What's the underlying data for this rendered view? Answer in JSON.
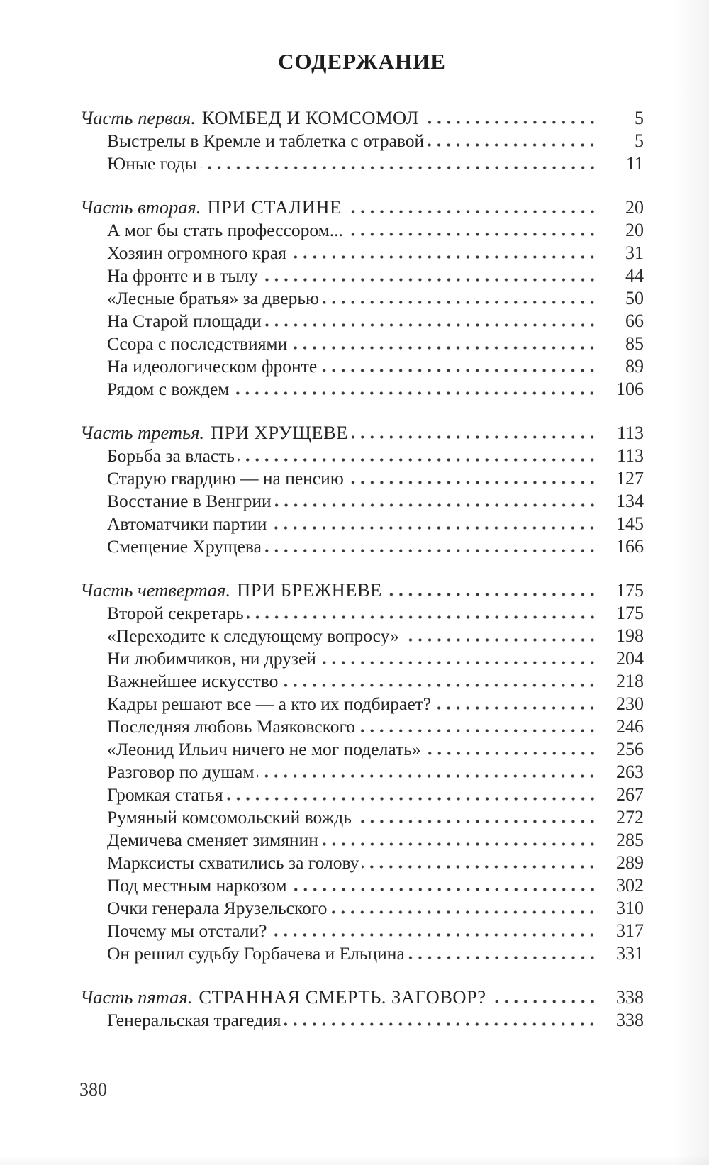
{
  "page": {
    "title": "СОДЕРЖАНИЕ",
    "folio": "380"
  },
  "colors": {
    "text": "#222222",
    "paper": "#ffffff"
  },
  "toc": {
    "sections": [
      {
        "part_label": "Часть первая.",
        "part_title": "КОМБЕД И КОМСОМОЛ",
        "page": "5",
        "items": [
          {
            "title": "Выстрелы в Кремле и таблетка с отравой",
            "page": "5"
          },
          {
            "title": "Юные годы",
            "page": "11"
          }
        ]
      },
      {
        "part_label": "Часть вторая.",
        "part_title": "ПРИ СТАЛИНЕ",
        "page": "20",
        "items": [
          {
            "title": "А мог бы стать профессором...",
            "page": "20"
          },
          {
            "title": "Хозяин огромного края",
            "page": "31"
          },
          {
            "title": "На фронте и в тылу",
            "page": "44"
          },
          {
            "title": "«Лесные братья» за дверью",
            "page": "50"
          },
          {
            "title": "На Старой площади",
            "page": "66"
          },
          {
            "title": "Ссора с последствиями",
            "page": "85"
          },
          {
            "title": "На идеологическом фронте",
            "page": "89"
          },
          {
            "title": "Рядом с вождем",
            "page": "106"
          }
        ]
      },
      {
        "part_label": "Часть третья.",
        "part_title": "ПРИ ХРУЩЕВЕ",
        "page": "113",
        "items": [
          {
            "title": "Борьба за власть",
            "page": "113"
          },
          {
            "title": "Старую гвардию — на пенсию",
            "page": "127"
          },
          {
            "title": "Восстание в Венгрии",
            "page": "134"
          },
          {
            "title": "Автоматчики партии",
            "page": "145"
          },
          {
            "title": "Смещение Хрущева",
            "page": "166"
          }
        ]
      },
      {
        "part_label": "Часть четвертая.",
        "part_title": "ПРИ БРЕЖНЕВЕ",
        "page": "175",
        "items": [
          {
            "title": "Второй секретарь",
            "page": "175"
          },
          {
            "title": "«Переходите к следующему вопросу»",
            "page": "198"
          },
          {
            "title": "Ни любимчиков, ни друзей",
            "page": "204"
          },
          {
            "title": "Важнейшее искусство",
            "page": "218"
          },
          {
            "title": "Кадры решают все — а кто их подбирает?",
            "page": "230"
          },
          {
            "title": "Последняя любовь Маяковского",
            "page": "246"
          },
          {
            "title": "«Леонид Ильич ничего не мог поделать»",
            "page": "256"
          },
          {
            "title": "Разговор по душам",
            "page": "263"
          },
          {
            "title": "Громкая статья",
            "page": "267"
          },
          {
            "title": "Румяный комсомольский вождь",
            "page": "272"
          },
          {
            "title": "Демичева сменяет зимянин",
            "page": "285"
          },
          {
            "title": "Марксисты схватились за голову",
            "page": "289"
          },
          {
            "title": "Под местным наркозом",
            "page": "302"
          },
          {
            "title": "Очки генерала Ярузельского",
            "page": "310"
          },
          {
            "title": "Почему мы отстали?",
            "page": "317"
          },
          {
            "title": "Он решил судьбу Горбачева и Ельцина",
            "page": "331"
          }
        ]
      },
      {
        "part_label": "Часть пятая.",
        "part_title": "СТРАННАЯ СМЕРТЬ. ЗАГОВОР?",
        "page": "338",
        "items": [
          {
            "title": "Генеральская трагедия",
            "page": "338"
          }
        ]
      }
    ]
  }
}
